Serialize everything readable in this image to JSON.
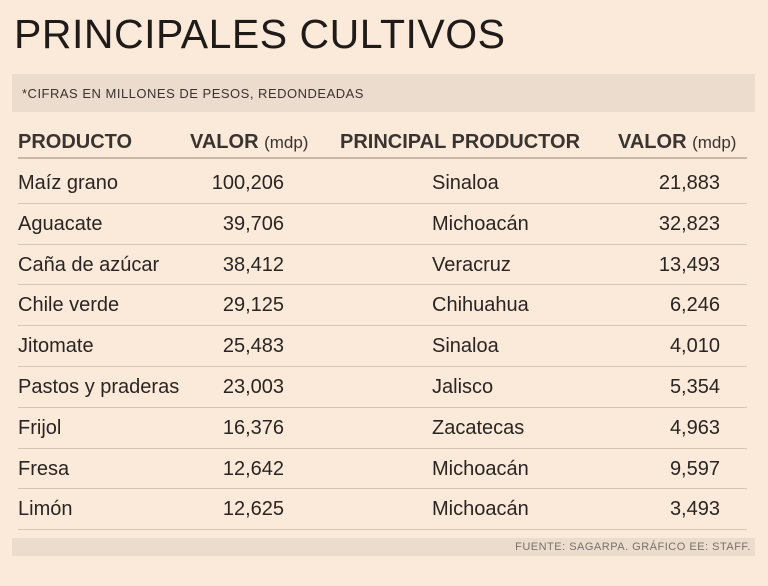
{
  "title": "PRINCIPALES CULTIVOS",
  "note": "*CIFRAS EN MILLONES DE PESOS, REDONDEADAS",
  "headers": {
    "producto": "PRODUCTO",
    "valor": "VALOR",
    "valor_unit": "(mdp)",
    "principal": "PRINCIPAL PRODUCTOR",
    "valor2": "VALOR",
    "valor2_unit": "(mdp)"
  },
  "footer": "FUENTE: SAGARPA. GRÁFICO EE: STAFF.",
  "chart_data": {
    "type": "table",
    "columns": [
      "PRODUCTO",
      "VALOR (mdp)",
      "PRINCIPAL PRODUCTOR",
      "VALOR (mdp)"
    ],
    "rows": [
      [
        "Maíz grano",
        "100,206",
        "Sinaloa",
        "21,883"
      ],
      [
        "Aguacate",
        "39,706",
        "Michoacán",
        "32,823"
      ],
      [
        "Caña de azúcar",
        "38,412",
        "Veracruz",
        "13,493"
      ],
      [
        "Chile verde",
        "29,125",
        "Chihuahua",
        "6,246"
      ],
      [
        "Jitomate",
        "25,483",
        "Sinaloa",
        "4,010"
      ],
      [
        "Pastos y praderas",
        "23,003",
        "Jalisco",
        "5,354"
      ],
      [
        "Frijol",
        "16,376",
        "Zacatecas",
        "4,963"
      ],
      [
        "Fresa",
        "12,642",
        "Michoacán",
        "9,597"
      ],
      [
        "Limón",
        "12,625",
        "Michoacán",
        "3,493"
      ]
    ]
  }
}
